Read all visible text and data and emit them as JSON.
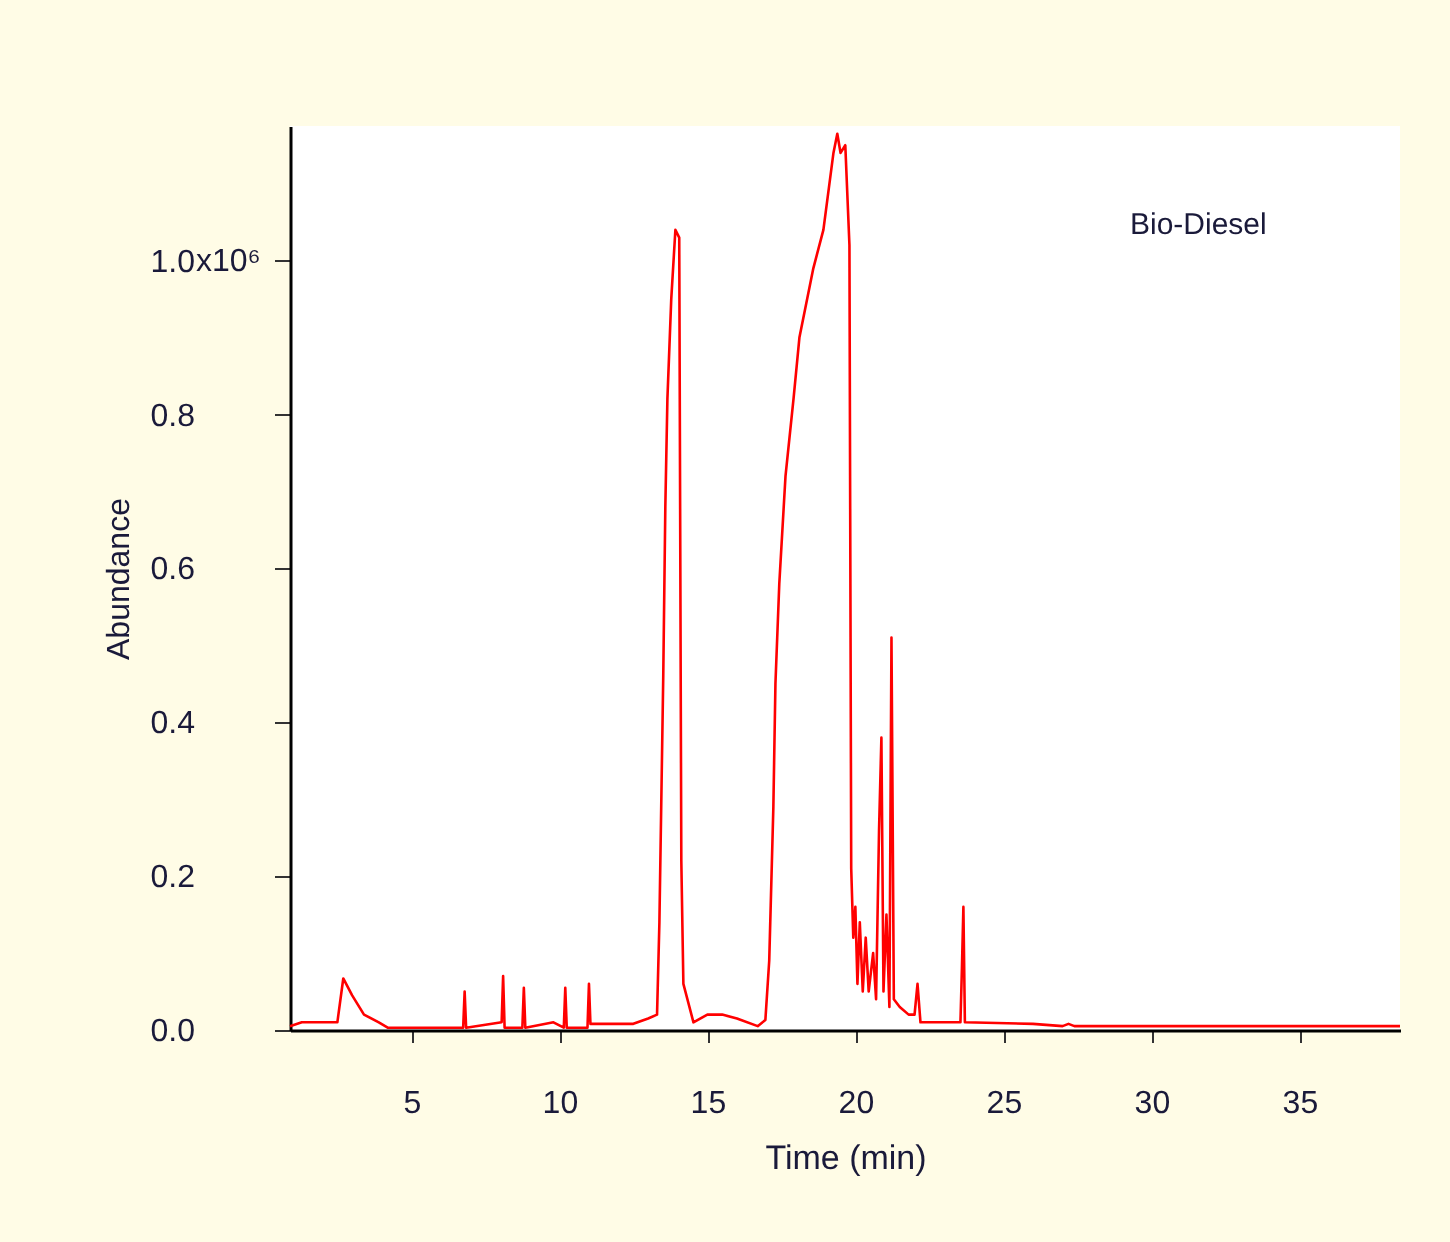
{
  "chart_data": {
    "type": "line",
    "xlabel": "Time (min)",
    "ylabel": "Abundance",
    "annotations": [
      "x10⁶",
      "Bio-Diesel"
    ],
    "xlim": [
      0.9,
      38.4
    ],
    "xticks": [
      5,
      10,
      15,
      20,
      25,
      30,
      35
    ],
    "ylim": [
      0,
      1.175
    ],
    "yticks": [
      {
        "value": 0,
        "label": "0.0"
      },
      0.2,
      0.4,
      0.6,
      0.8,
      {
        "value": 1.0,
        "label": "1.0"
      }
    ],
    "grid": false,
    "marker": "none",
    "line_style": "solid",
    "series": [
      {
        "color": "#ff0000",
        "x": [
          0.9,
          1.3,
          2.2,
          2.5,
          2.7,
          3.0,
          3.4,
          3.9,
          4.2,
          6.75,
          6.8,
          6.85,
          8.05,
          8.1,
          8.15,
          8.75,
          8.8,
          8.85,
          9.8,
          10.15,
          10.2,
          10.25,
          10.95,
          11.0,
          11.05,
          11.5,
          12.5,
          13.0,
          13.3,
          13.38,
          13.51,
          13.58,
          13.65,
          13.78,
          13.92,
          14.05,
          14.12,
          14.19,
          14.53,
          15.0,
          15.5,
          16.0,
          16.7,
          16.96,
          17.09,
          17.23,
          17.3,
          17.43,
          17.64,
          17.91,
          18.11,
          18.58,
          18.92,
          19.26,
          19.39,
          19.5,
          19.66,
          19.8,
          19.86,
          19.93,
          20.0,
          20.07,
          20.15,
          20.25,
          20.35,
          20.45,
          20.6,
          20.7,
          20.8,
          20.88,
          20.95,
          21.05,
          21.15,
          21.22,
          21.3,
          21.5,
          21.8,
          22.0,
          22.1,
          22.2,
          23.0,
          23.55,
          23.6,
          23.65,
          23.7,
          26.0,
          27.0,
          27.2,
          27.4,
          38.4
        ],
        "values": [
          0.005,
          0.01,
          0.01,
          0.01,
          0.067,
          0.045,
          0.02,
          0.01,
          0.003,
          0.003,
          0.05,
          0.003,
          0.01,
          0.07,
          0.003,
          0.003,
          0.055,
          0.003,
          0.01,
          0.003,
          0.055,
          0.003,
          0.003,
          0.06,
          0.008,
          0.008,
          0.008,
          0.015,
          0.02,
          0.14,
          0.46,
          0.68,
          0.82,
          0.95,
          1.04,
          1.03,
          0.22,
          0.06,
          0.01,
          0.02,
          0.02,
          0.015,
          0.005,
          0.013,
          0.09,
          0.29,
          0.45,
          0.58,
          0.72,
          0.82,
          0.9,
          0.99,
          1.04,
          1.14,
          1.165,
          1.14,
          1.15,
          1.02,
          0.21,
          0.12,
          0.16,
          0.06,
          0.14,
          0.05,
          0.12,
          0.05,
          0.1,
          0.04,
          0.26,
          0.38,
          0.05,
          0.15,
          0.03,
          0.51,
          0.04,
          0.03,
          0.02,
          0.02,
          0.06,
          0.01,
          0.01,
          0.01,
          0.08,
          0.16,
          0.01,
          0.008,
          0.005,
          0.008,
          0.005,
          0.005
        ]
      }
    ]
  }
}
